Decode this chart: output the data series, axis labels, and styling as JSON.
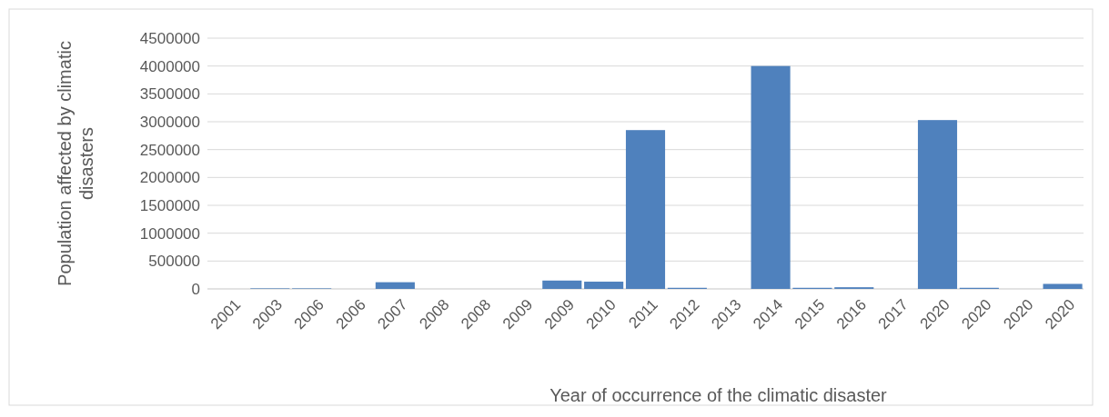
{
  "chart_data": {
    "type": "bar",
    "xlabel": "Year of occurrence of the climatic disaster",
    "ylabel": "Population affected by climatic disasters",
    "categories": [
      "2001",
      "2003",
      "2006",
      "2006",
      "2007",
      "2008",
      "2008",
      "2009",
      "2009",
      "2010",
      "2011",
      "2012",
      "2013",
      "2014",
      "2015",
      "2016",
      "2017",
      "2020",
      "2020",
      "2020",
      "2020"
    ],
    "values": [
      0,
      10000,
      10000,
      0,
      120000,
      0,
      0,
      0,
      150000,
      130000,
      2850000,
      20000,
      0,
      4000000,
      20000,
      30000,
      0,
      3030000,
      20000,
      0,
      90000
    ],
    "color": "#4f81bd",
    "ylim": [
      0,
      4500000
    ],
    "yticks": [
      0,
      500000,
      1000000,
      1500000,
      2000000,
      2500000,
      3000000,
      3500000,
      4000000,
      4500000
    ],
    "grid": "y"
  }
}
